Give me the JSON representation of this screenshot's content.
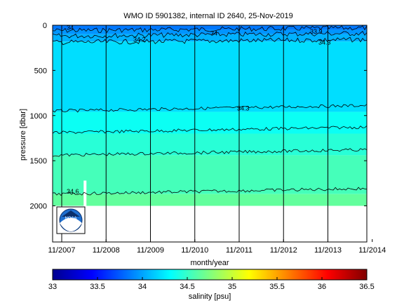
{
  "chart_data": {
    "type": "heatmap",
    "title": "WMO ID 5901382, internal ID 2640, 25-Nov-2019",
    "xlabel": "month/year",
    "ylabel": "pressure [dbar]",
    "x_ticks": [
      "11/2007",
      "11/2008",
      "11/2009",
      "11/2010",
      "11/2011",
      "11/2012",
      "11/2013",
      "11/2014"
    ],
    "xlim": [
      "2007-11",
      "2014-12"
    ],
    "y_ticks": [
      0,
      500,
      1000,
      1500,
      2000
    ],
    "ylim": [
      2400,
      0
    ],
    "y_reversed": true,
    "colorbar": {
      "label": "salinity [psu]",
      "ticks": [
        "33",
        "33.5",
        "34",
        "34.5",
        "35",
        "35.5",
        "36",
        "36.5"
      ],
      "range": [
        33,
        36.5
      ],
      "colormap": "jet"
    },
    "contour_levels": [
      {
        "salinity": 34.2,
        "pressure": 60,
        "label": "34"
      },
      {
        "salinity": 34.2,
        "pressure": 120,
        "label": "34"
      },
      {
        "salinity": 34.2,
        "pressure": 190,
        "label": "34.2"
      },
      {
        "salinity": 34.3,
        "pressure": 950,
        "label": "34.3"
      },
      {
        "salinity": 34.4,
        "pressure": 1190,
        "label": ""
      },
      {
        "salinity": 34.5,
        "pressure": 1440,
        "label": ""
      },
      {
        "salinity": 34.6,
        "pressure": 1870,
        "label": "34.6"
      }
    ],
    "contour_label_extra": [
      "33.9",
      "34.3"
    ],
    "salinity_bands": [
      {
        "top": 0,
        "bottom": 50,
        "salinity": 33.85
      },
      {
        "top": 50,
        "bottom": 100,
        "salinity": 33.95
      },
      {
        "top": 100,
        "bottom": 180,
        "salinity": 34.05
      },
      {
        "top": 180,
        "bottom": 960,
        "salinity": 34.2
      },
      {
        "top": 960,
        "bottom": 1200,
        "salinity": 34.35
      },
      {
        "top": 1200,
        "bottom": 1440,
        "salinity": 34.45
      },
      {
        "top": 1440,
        "bottom": 1870,
        "salinity": 34.55
      },
      {
        "top": 1870,
        "bottom": 2000,
        "salinity": 34.65
      }
    ],
    "data_max_pressure": 2000,
    "profile_markers": [
      "11/2007",
      "11/2008",
      "11/2009",
      "11/2010",
      "11/2011",
      "11/2012",
      "11/2013",
      "11/2014"
    ]
  },
  "logo": {
    "text": "NOAA"
  }
}
